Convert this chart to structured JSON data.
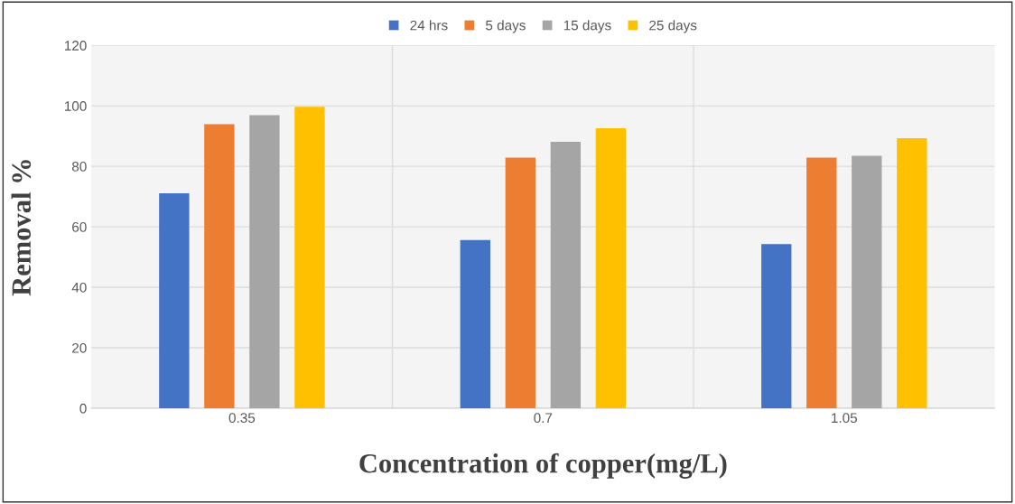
{
  "chart_data": {
    "type": "bar",
    "xlabel": "Concentration of copper(mg/L)",
    "ylabel": "Removal %",
    "categories": [
      "0.35",
      "0.7",
      "1.05"
    ],
    "series": [
      {
        "name": "24 hrs",
        "color": "#4472c4",
        "values": [
          71.1,
          55.6,
          54.3
        ]
      },
      {
        "name": "5 days",
        "color": "#ed7d31",
        "values": [
          93.9,
          82.9,
          82.9
        ]
      },
      {
        "name": "15 days",
        "color": "#a5a5a5",
        "values": [
          96.9,
          88.1,
          83.5
        ]
      },
      {
        "name": "25 days",
        "color": "#ffc000",
        "values": [
          99.7,
          92.6,
          89.3
        ]
      }
    ],
    "ylim": [
      0,
      120
    ],
    "yticks": [
      0,
      20,
      40,
      60,
      80,
      100,
      120
    ],
    "grid": true,
    "legend": "top"
  }
}
